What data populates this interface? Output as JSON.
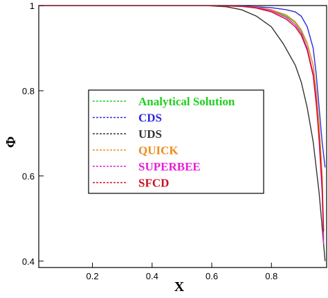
{
  "chart_data": {
    "type": "line",
    "title": "",
    "xlabel": "X",
    "ylabel": "Φ",
    "xlim": [
      0.02,
      0.985
    ],
    "ylim": [
      0.385,
      1.0
    ],
    "xticks": [
      "0.2",
      "0.4",
      "0.6",
      "0.8"
    ],
    "xtick_values": [
      0.2,
      0.4,
      0.6,
      0.8
    ],
    "yticks": [
      "0.4",
      "0.6",
      "0.8",
      "1"
    ],
    "ytick_values": [
      0.4,
      0.6,
      0.8,
      1.0
    ],
    "grid": false,
    "legend_position": "center-left",
    "series": [
      {
        "name": "Analytical Solution",
        "color": "#1fd01f",
        "dash": "dashed",
        "x": [
          0.02,
          0.6,
          0.7,
          0.75,
          0.8,
          0.85,
          0.88,
          0.9,
          0.92,
          0.94,
          0.95,
          0.96,
          0.97,
          0.975
        ],
        "y": [
          1.0,
          1.0,
          0.998,
          0.996,
          0.99,
          0.975,
          0.96,
          0.94,
          0.91,
          0.86,
          0.8,
          0.72,
          0.6,
          0.45
        ]
      },
      {
        "name": "CDS",
        "color": "#2a2ae0",
        "dash": "dashed",
        "x": [
          0.02,
          0.6,
          0.7,
          0.8,
          0.85,
          0.88,
          0.9,
          0.92,
          0.94,
          0.95,
          0.96,
          0.97,
          0.98
        ],
        "y": [
          1.0,
          1.0,
          0.999,
          0.995,
          0.99,
          0.985,
          0.975,
          0.95,
          0.9,
          0.84,
          0.76,
          0.68,
          0.62
        ]
      },
      {
        "name": "UDS",
        "color": "#333333",
        "dash": "dashed",
        "x": [
          0.02,
          0.58,
          0.65,
          0.7,
          0.75,
          0.8,
          0.84,
          0.88,
          0.9,
          0.92,
          0.94,
          0.96,
          0.98
        ],
        "y": [
          1.0,
          1.0,
          0.997,
          0.99,
          0.975,
          0.95,
          0.91,
          0.86,
          0.82,
          0.76,
          0.68,
          0.56,
          0.4
        ]
      },
      {
        "name": "QUICK",
        "color": "#f08a1e",
        "dash": "dashed",
        "x": [
          0.02,
          0.6,
          0.7,
          0.75,
          0.8,
          0.85,
          0.88,
          0.9,
          0.92,
          0.94,
          0.95,
          0.96,
          0.97,
          0.975
        ],
        "y": [
          1.0,
          1.0,
          0.998,
          0.996,
          0.99,
          0.978,
          0.962,
          0.943,
          0.912,
          0.86,
          0.8,
          0.72,
          0.6,
          0.47
        ]
      },
      {
        "name": "SUPERBEE",
        "color": "#e51ed6",
        "dash": "dashed",
        "x": [
          0.02,
          0.6,
          0.7,
          0.75,
          0.8,
          0.85,
          0.88,
          0.9,
          0.92,
          0.94,
          0.95,
          0.96,
          0.97,
          0.975
        ],
        "y": [
          1.0,
          1.0,
          0.998,
          0.995,
          0.988,
          0.972,
          0.955,
          0.935,
          0.9,
          0.84,
          0.78,
          0.68,
          0.56,
          0.44
        ]
      },
      {
        "name": "SFCD",
        "color": "#cc1020",
        "dash": "dashed",
        "x": [
          0.02,
          0.6,
          0.7,
          0.75,
          0.8,
          0.85,
          0.88,
          0.9,
          0.92,
          0.94,
          0.95,
          0.96,
          0.97,
          0.975
        ],
        "y": [
          1.0,
          1.0,
          0.998,
          0.994,
          0.985,
          0.968,
          0.95,
          0.93,
          0.895,
          0.835,
          0.77,
          0.69,
          0.58,
          0.47
        ]
      }
    ]
  }
}
